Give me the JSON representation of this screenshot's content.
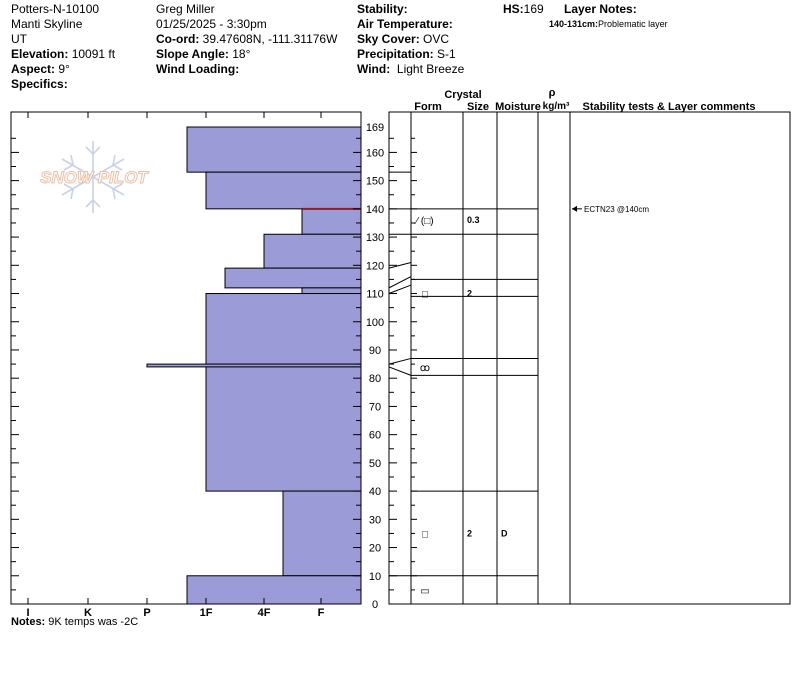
{
  "header": {
    "site": "Potters-N-10100",
    "range": "Manti Skyline",
    "state": "UT",
    "elevation_label": "Elevation:",
    "elevation_value": "10091 ft",
    "aspect_label": "Aspect:",
    "aspect_value": "9°",
    "specifics_label": "Specifics:",
    "observer": "Greg Miller",
    "datetime": "01/25/2025 - 3:30pm",
    "coord_label": "Co-ord:",
    "coord_value": "39.47608N, -111.31176W",
    "slope_label": "Slope Angle:",
    "slope_value": "18°",
    "wind_loading_label": "Wind Loading:",
    "stability_label": "Stability:",
    "air_temp_label": "Air Temperature:",
    "sky_label": "Sky Cover:",
    "sky_value": "OVC",
    "precip_label": "Precipitation:",
    "precip_value": "S-1",
    "wind_label": "Wind:",
    "wind_value": "Light Breeze",
    "hs_label": "HS:",
    "hs_value": "169",
    "layer_notes_label": "Layer Notes:",
    "layer_note_range": "140-131cm:",
    "layer_note_text": "Problematic layer"
  },
  "logo_text": "SNOW PILOT",
  "notes_label": "Notes:",
  "notes_text": "9K temps was -2C",
  "column_headers": {
    "crystal": "Crystal",
    "form": "Form",
    "size": "Size",
    "moisture": "Moisture",
    "rho": "ρ",
    "density": "kg/m³",
    "stability": "Stability tests & Layer comments"
  },
  "stability_tests": [
    {
      "depth": 140,
      "text": "ECTN23 @140cm"
    }
  ],
  "layer_details": [
    {
      "form": "⁄ (□)",
      "size": "0.3",
      "moisture": ""
    },
    {
      "form": "□",
      "size": "2",
      "moisture": ""
    },
    {
      "form": "ꝏ",
      "size": "",
      "moisture": ""
    },
    {
      "form": "□",
      "size": "2",
      "moisture": "D"
    },
    {
      "form": "▭",
      "size": "",
      "moisture": ""
    }
  ],
  "chart_data": {
    "type": "bar",
    "orientation": "horizontal",
    "x_categories": [
      "I",
      "K",
      "P",
      "1F",
      "4F",
      "F"
    ],
    "y_axis": {
      "min": 0,
      "max": 169,
      "ticks": [
        0,
        10,
        20,
        30,
        40,
        50,
        60,
        70,
        80,
        90,
        100,
        110,
        120,
        130,
        140,
        150,
        160,
        169
      ]
    },
    "layers": [
      {
        "bottom": 153,
        "top": 169,
        "hardness": "1F+"
      },
      {
        "bottom": 140,
        "top": 153,
        "hardness": "1F"
      },
      {
        "bottom": 131,
        "top": 140,
        "hardness": "F+"
      },
      {
        "bottom": 119,
        "top": 131,
        "hardness": "4F"
      },
      {
        "bottom": 112,
        "top": 119,
        "hardness": "1F-"
      },
      {
        "bottom": 110,
        "top": 112,
        "hardness": "F+"
      },
      {
        "bottom": 85,
        "top": 110,
        "hardness": "1F"
      },
      {
        "bottom": 84,
        "top": 85,
        "hardness": "P"
      },
      {
        "bottom": 40,
        "top": 84,
        "hardness": "1F"
      },
      {
        "bottom": 10,
        "top": 40,
        "hardness": "4F-"
      },
      {
        "bottom": 0,
        "top": 10,
        "hardness": "1F+"
      }
    ],
    "detail_rows": [
      {
        "top": 131,
        "bottom": 140,
        "center": 136
      },
      {
        "top": 109,
        "bottom": 115,
        "center": 110
      },
      {
        "top": 81,
        "bottom": 87,
        "center": 84
      },
      {
        "top": 10,
        "bottom": 40,
        "center": 25
      },
      {
        "top": 0,
        "bottom": 10,
        "center": 5
      }
    ],
    "connectors_from": [
      119,
      110,
      112,
      85,
      84
    ],
    "connectors_to": [
      121,
      113,
      116,
      87,
      81
    ],
    "highlight_line": {
      "depth": 140,
      "color": "#8b1a2a"
    },
    "layer_fill": "#9b9bd8",
    "layer_stroke": "#000000"
  }
}
